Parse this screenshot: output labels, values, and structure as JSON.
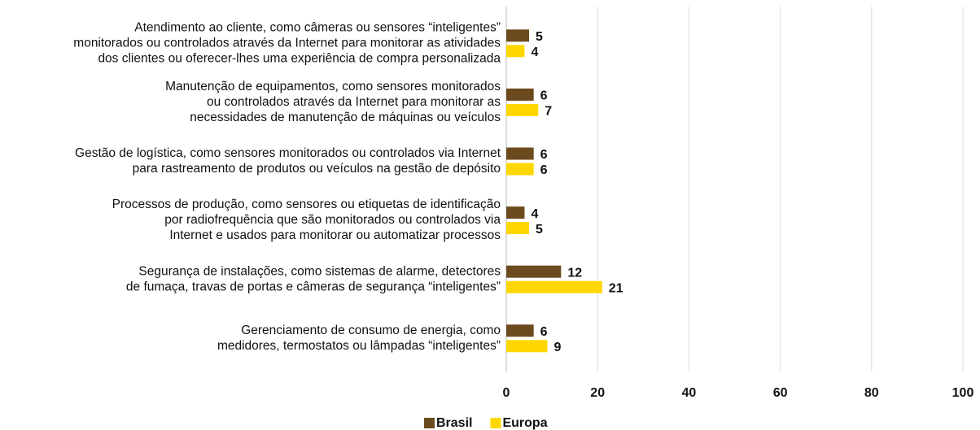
{
  "chart_data": {
    "type": "bar",
    "orientation": "horizontal",
    "categories": [
      [
        "Atendimento ao cliente, como câmeras ou sensores “inteligentes”",
        "monitorados ou controlados através da Internet para monitorar as atividades",
        "dos clientes ou oferecer-lhes uma experiência de compra personalizada"
      ],
      [
        "Manutenção de equipamentos, como sensores monitorados",
        "ou controlados através da Internet para monitorar as",
        "necessidades de manutenção de máquinas ou veículos"
      ],
      [
        "Gestão de logística, como sensores monitorados ou controlados via Internet",
        "para rastreamento de produtos ou veículos na gestão de depósito"
      ],
      [
        "Processos de produção, como sensores ou etiquetas de identificação",
        "por radiofrequência que são monitorados ou controlados via",
        "Internet e usados para monitorar ou automatizar processos"
      ],
      [
        "Segurança de instalações, como sistemas de alarme, detectores",
        "de fumaça, travas de portas e câmeras de segurança “inteligentes”"
      ],
      [
        "Gerenciamento de consumo de energia, como",
        "medidores, termostatos ou lâmpadas “inteligentes”"
      ]
    ],
    "series": [
      {
        "name": "Brasil",
        "color": "#6b4a1e",
        "values": [
          5,
          6,
          6,
          4,
          12,
          6
        ]
      },
      {
        "name": "Europa",
        "color": "#ffd700",
        "values": [
          4,
          7,
          6,
          5,
          21,
          9
        ]
      }
    ],
    "xlim": [
      0,
      100
    ],
    "xticks": [
      0,
      20,
      40,
      60,
      80,
      100
    ],
    "grid": true,
    "legend": "bottom"
  }
}
